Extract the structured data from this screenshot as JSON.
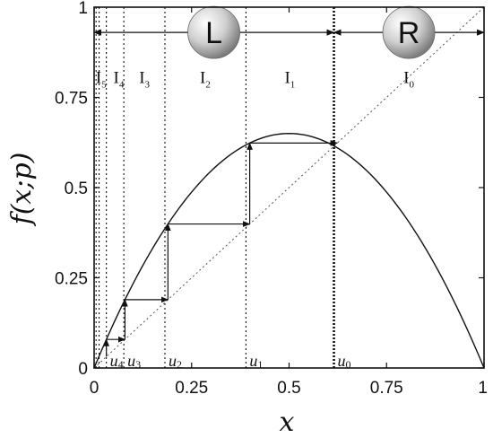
{
  "chart_data": {
    "type": "line",
    "title": "",
    "xlabel": "x",
    "ylabel": "f(x;p)",
    "xlim": [
      0,
      1
    ],
    "ylim": [
      0,
      1
    ],
    "xticks": [
      "0",
      "0.25",
      "0.5",
      "0.75",
      "1"
    ],
    "yticks": [
      "0",
      "0.25",
      "0.5",
      "0.75",
      "1"
    ],
    "grid": false,
    "parameter_p": 2.6,
    "curve": {
      "name": "",
      "formula": "p*x*(1-x)",
      "samples": 101
    },
    "identity_line": {
      "name": "",
      "style": "dotted"
    },
    "orbit_points": [
      {
        "label": "u",
        "sub": "0",
        "x": 0.615
      },
      {
        "label": "u",
        "sub": "1",
        "x": 0.3895
      },
      {
        "label": "u",
        "sub": "2",
        "x": 0.1816
      },
      {
        "label": "u",
        "sub": "3",
        "x": 0.0762
      },
      {
        "label": "u",
        "sub": "4",
        "x": 0.0314
      }
    ],
    "extra_boundaries_x": [
      0.0128,
      0.005
    ],
    "intervals": [
      {
        "label": "I",
        "sub": "0",
        "x_center": 0.807
      },
      {
        "label": "I",
        "sub": "1",
        "x_center": 0.502
      },
      {
        "label": "I",
        "sub": "2",
        "x_center": 0.285
      },
      {
        "label": "I",
        "sub": "3",
        "x_center": 0.129
      },
      {
        "label": "I",
        "sub": "4",
        "x_center": 0.063
      },
      {
        "label": "I",
        "sub": "5",
        "x_center": 0.018
      }
    ],
    "regions": [
      {
        "label": "L",
        "x_center": 0.307
      },
      {
        "label": "R",
        "x_center": 0.807
      }
    ],
    "region_arrow_y": 0.93,
    "cobweb": {
      "start_x": 0.0314,
      "steps": 4
    }
  }
}
